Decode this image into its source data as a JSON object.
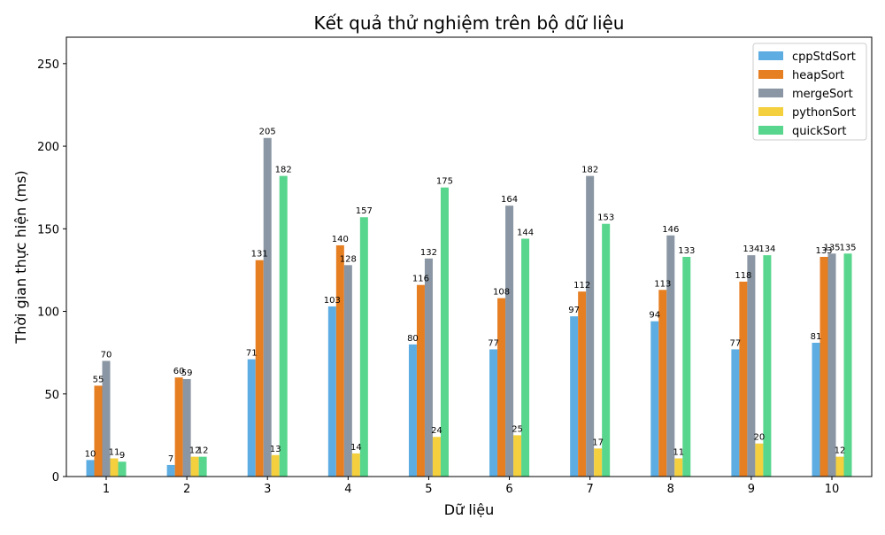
{
  "chart_data": {
    "type": "bar",
    "title": "Kết quả thử nghiệm trên bộ dữ liệu",
    "xlabel": "Dữ liệu",
    "ylabel": "Thời gian thực hiện (ms)",
    "categories": [
      "1",
      "2",
      "3",
      "4",
      "5",
      "6",
      "7",
      "8",
      "9",
      "10"
    ],
    "ylim": [
      0,
      266
    ],
    "yticks": [
      0,
      50,
      100,
      150,
      200,
      250
    ],
    "grid": false,
    "legend_position": "top-right",
    "series": [
      {
        "name": "cppStdSort",
        "color": "#5dade2",
        "values": [
          10,
          7,
          71,
          103,
          80,
          77,
          97,
          94,
          77,
          81
        ]
      },
      {
        "name": "heapSort",
        "color": "#e67e22",
        "values": [
          55,
          60,
          131,
          140,
          116,
          108,
          112,
          113,
          118,
          133
        ]
      },
      {
        "name": "mergeSort",
        "color": "#8a96a3",
        "values": [
          70,
          59,
          205,
          128,
          132,
          164,
          182,
          146,
          134,
          135
        ]
      },
      {
        "name": "pythonSort",
        "color": "#f4d03f",
        "values": [
          11,
          12,
          13,
          14,
          24,
          25,
          17,
          11,
          20,
          12
        ]
      },
      {
        "name": "quickSort",
        "color": "#58d68d",
        "values": [
          9,
          12,
          182,
          157,
          175,
          144,
          153,
          133,
          134,
          135
        ]
      }
    ]
  }
}
